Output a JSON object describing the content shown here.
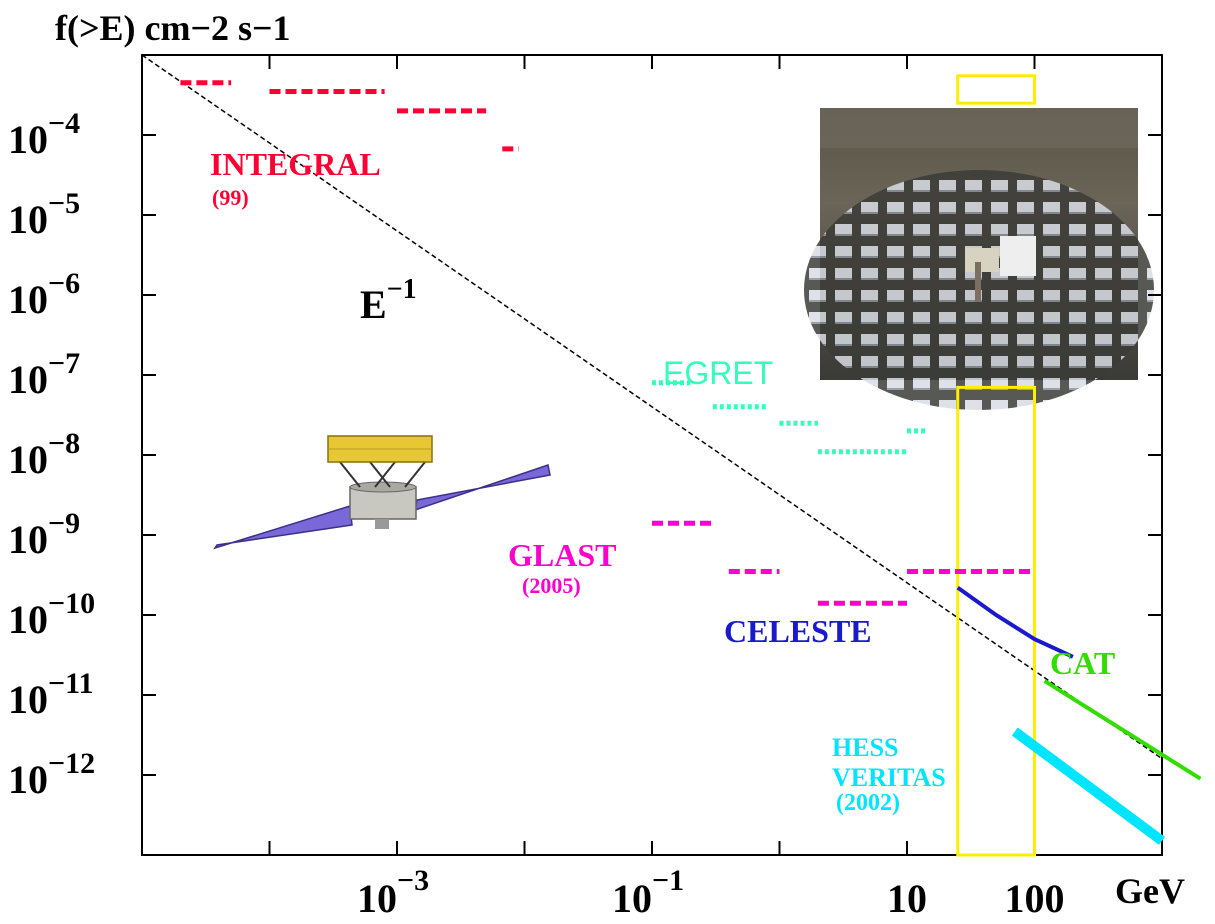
{
  "chart_data": {
    "type": "line",
    "title": "f(>E) cm−2 s−1",
    "xlabel": "GeV",
    "x_scale": "log",
    "y_scale": "log",
    "xlim": [
      1e-05,
      1000
    ],
    "ylim": [
      1e-13,
      0.001
    ],
    "x_ticks": [
      {
        "value": 0.001,
        "base": "10",
        "exp": "−3"
      },
      {
        "value": 0.1,
        "base": "10",
        "exp": "−1"
      },
      {
        "value": 10,
        "base": "10",
        "exp": ""
      },
      {
        "value": 100,
        "base": "100",
        "exp": ""
      }
    ],
    "y_ticks": [
      {
        "value": 0.0001,
        "base": "10",
        "exp": "−4"
      },
      {
        "value": 1e-05,
        "base": "10",
        "exp": "−5"
      },
      {
        "value": 1e-06,
        "base": "10",
        "exp": "−6"
      },
      {
        "value": 1e-07,
        "base": "10",
        "exp": "−7"
      },
      {
        "value": 1e-08,
        "base": "10",
        "exp": "−8"
      },
      {
        "value": 1e-09,
        "base": "10",
        "exp": "−9"
      },
      {
        "value": 1e-10,
        "base": "10",
        "exp": "−10"
      },
      {
        "value": 1e-11,
        "base": "10",
        "exp": "−11"
      },
      {
        "value": 1e-12,
        "base": "10",
        "exp": "−12"
      }
    ],
    "reference_line": {
      "name": "E",
      "exp": "−1",
      "points": [
        [
          1e-05,
          0.001
        ],
        [
          1000,
          1.6e-12
        ]
      ],
      "color": "#000000"
    },
    "series": [
      {
        "name": "INTEGRAL",
        "sublabel": "(99)",
        "color": "#ff0033",
        "style": "dashed",
        "segments": [
          [
            [
              2e-05,
              0.00045
            ],
            [
              5e-05,
              0.00045
            ]
          ],
          [
            [
              0.0001,
              0.00035
            ],
            [
              0.0008,
              0.00035
            ]
          ],
          [
            [
              0.001,
              0.0002
            ],
            [
              0.005,
              0.0002
            ]
          ],
          [
            [
              0.0067,
              6.7e-05
            ],
            [
              0.009,
              6.7e-05
            ]
          ]
        ]
      },
      {
        "name": "EGRET",
        "sublabel": "",
        "color": "#33ffbb",
        "style": "dotted",
        "segments": [
          [
            [
              0.1,
              8e-08
            ],
            [
              0.2,
              8e-08
            ]
          ],
          [
            [
              0.3,
              4e-08
            ],
            [
              0.8,
              4e-08
            ]
          ],
          [
            [
              1,
              2.5e-08
            ],
            [
              2,
              2.5e-08
            ]
          ],
          [
            [
              2,
              1.1e-08
            ],
            [
              10,
              1.1e-08
            ]
          ],
          [
            [
              10,
              2e-08
            ],
            [
              14,
              2e-08
            ]
          ]
        ]
      },
      {
        "name": "GLAST",
        "sublabel": "(2005)",
        "color": "#ff00cc",
        "style": "dashed",
        "segments": [
          [
            [
              0.1,
              1.4e-09
            ],
            [
              0.3,
              1.4e-09
            ]
          ],
          [
            [
              0.4,
              3.5e-10
            ],
            [
              1,
              3.5e-10
            ]
          ],
          [
            [
              2,
              1.4e-10
            ],
            [
              10,
              1.4e-10
            ]
          ],
          [
            [
              10,
              3.5e-10
            ],
            [
              100,
              3.5e-10
            ]
          ]
        ]
      },
      {
        "name": "CELESTE",
        "sublabel": "",
        "color": "#1a1acc",
        "style": "solid",
        "segments": [
          [
            [
              25,
              2.2e-10
            ],
            [
              50,
              1e-10
            ],
            [
              100,
              5e-11
            ],
            [
              200,
              3e-11
            ]
          ]
        ]
      },
      {
        "name": "CAT",
        "sublabel": "",
        "color": "#33dd00",
        "style": "solid",
        "segments": [
          [
            [
              120,
              1.5e-11
            ],
            [
              2000,
              9e-13
            ]
          ]
        ]
      },
      {
        "name": "HESS VERITAS",
        "sublabel": "(2002)",
        "color": "#00e5ff",
        "style": "thick",
        "segments": [
          [
            [
              70,
              3.5e-12
            ],
            [
              1000,
              1.5e-13
            ]
          ]
        ]
      }
    ],
    "highlight_boxes": [
      {
        "name": "upper-box",
        "x": [
          25,
          100
        ],
        "y": [
          0.00025,
          0.00055
        ]
      },
      {
        "name": "lower-box",
        "x": [
          25,
          100
        ],
        "y": [
          1e-13,
          7e-08
        ]
      }
    ]
  },
  "labels": {
    "integral": "INTEGRAL",
    "integral_sub": "(99)",
    "egret": "EGRET",
    "glast": "GLAST",
    "glast_sub": "(2005)",
    "celeste": "CELESTE",
    "cat": "CAT",
    "hess": "HESS",
    "veritas": "VERITAS",
    "hess_sub": "(2002)",
    "eline_base": "E",
    "eline_exp": "−1"
  }
}
